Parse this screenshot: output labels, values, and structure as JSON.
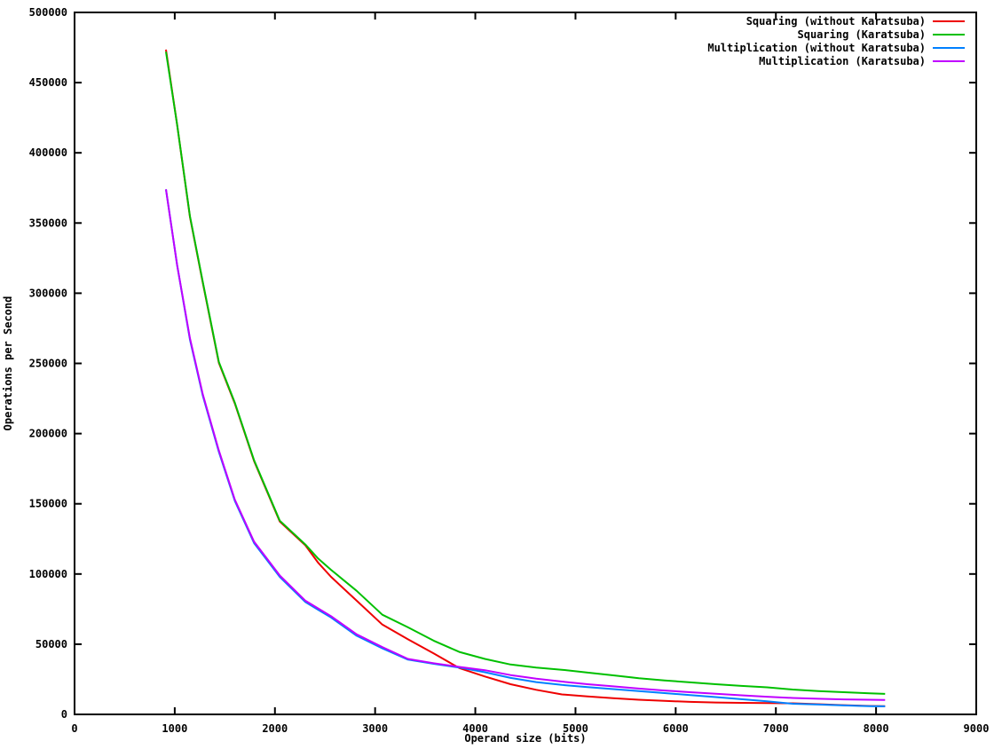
{
  "chart_data": {
    "type": "line",
    "title": "",
    "xlabel": "Operand size (bits)",
    "ylabel": "Operations per Second",
    "xlim": [
      0,
      9000
    ],
    "ylim": [
      0,
      500000
    ],
    "xtick_step": 1000,
    "ytick_step": 50000,
    "grid": false,
    "legend_position": "top-right-inside",
    "background_color": "#ffffff",
    "border_color": "#000000",
    "x": [
      912,
      1024,
      1152,
      1280,
      1440,
      1600,
      1792,
      2048,
      2304,
      2432,
      2560,
      2816,
      3072,
      3328,
      3584,
      3840,
      4096,
      4352,
      4608,
      4864,
      5120,
      5376,
      5632,
      5888,
      6144,
      6400,
      6656,
      6912,
      7168,
      7424,
      7680,
      7936,
      8090
    ],
    "series": [
      {
        "name": "Squaring (without Karatsuba)",
        "color": "#ee0000",
        "values": [
          473500,
          420000,
          354400,
          307400,
          250400,
          221400,
          180400,
          137400,
          120400,
          108000,
          98000,
          81000,
          64000,
          53500,
          43500,
          33000,
          27000,
          21500,
          17500,
          14200,
          12800,
          11500,
          10400,
          9600,
          8900,
          8500,
          8200,
          8000,
          7900,
          7300,
          6600,
          6000,
          5800
        ]
      },
      {
        "name": "Squaring (Karatsuba)",
        "color": "#00c000",
        "values": [
          472000,
          420000,
          355000,
          308000,
          251000,
          222000,
          181000,
          138000,
          121000,
          111000,
          103000,
          88000,
          71000,
          62000,
          52500,
          44500,
          39500,
          35500,
          33300,
          31800,
          29800,
          27800,
          25800,
          24200,
          22800,
          21500,
          20300,
          19300,
          17700,
          16600,
          15800,
          15000,
          14600
        ]
      },
      {
        "name": "Multiplication (without Karatsuba)",
        "color": "#0080ff",
        "values": [
          374000,
          320000,
          267000,
          227000,
          187000,
          152000,
          122000,
          98000,
          80000,
          74500,
          69000,
          56000,
          47000,
          39000,
          36000,
          33400,
          30000,
          26000,
          23000,
          21000,
          19400,
          18000,
          16600,
          15200,
          13800,
          12300,
          10800,
          9300,
          7600,
          7000,
          6400,
          5900,
          5750
        ]
      },
      {
        "name": "Multiplication (Karatsuba)",
        "color": "#c000ff",
        "values": [
          374000,
          320000,
          268000,
          228000,
          188000,
          153000,
          123000,
          99000,
          81000,
          75500,
          70000,
          57000,
          48000,
          39500,
          36500,
          33800,
          31500,
          28000,
          25500,
          23400,
          21500,
          20000,
          18400,
          17000,
          15800,
          14700,
          13600,
          12600,
          11700,
          11100,
          10700,
          10400,
          10300
        ]
      }
    ]
  }
}
